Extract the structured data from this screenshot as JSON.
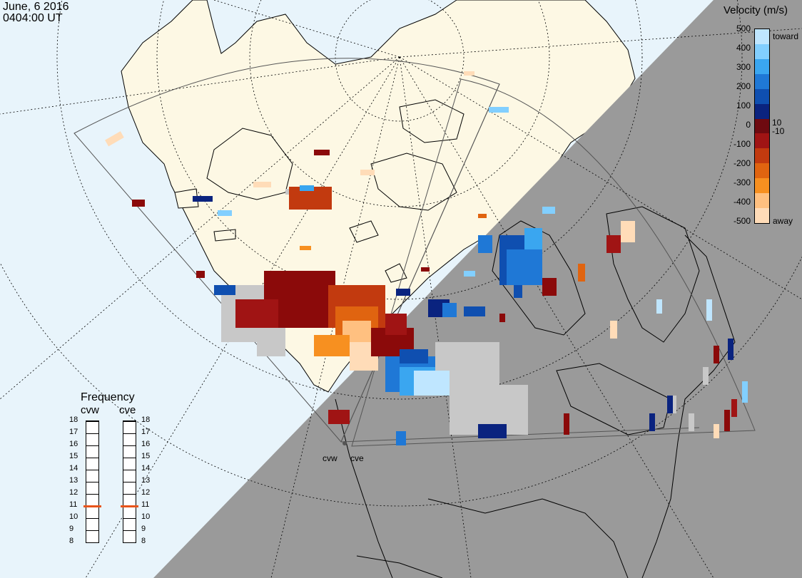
{
  "header": {
    "date": "June, 6 2016",
    "time": "0404:00 UT"
  },
  "colorbar": {
    "title": "Velocity (m/s)",
    "toward_label": "toward",
    "away_label": "away",
    "ticks": [
      "500",
      "400",
      "300",
      "200",
      "100",
      "10",
      "0",
      "-10",
      "-100",
      "-200",
      "-300",
      "-400",
      "-500"
    ],
    "colors": [
      "#bfe6ff",
      "#82cfff",
      "#3aa6f0",
      "#1f78d6",
      "#0f4fb0",
      "#0a237f",
      "#6e0a10",
      "#a01414",
      "#c23a0f",
      "#e06410",
      "#f79020",
      "#ffc080",
      "#ffdcb8"
    ]
  },
  "frequency": {
    "title": "Frequency",
    "radars": [
      "cvw",
      "cve"
    ],
    "ticks": [
      "18",
      "17",
      "16",
      "15",
      "14",
      "13",
      "12",
      "11",
      "10",
      "9",
      "8"
    ],
    "values": [
      11,
      11
    ],
    "marker_color": "#e8541a"
  },
  "radar_sites": [
    "cvw",
    "cve"
  ],
  "colors": {
    "ocean": "#e8f4fb",
    "land": "#fdf8e4",
    "night": "#9a9a9a",
    "ground_scatter": "#c8c8c8"
  }
}
